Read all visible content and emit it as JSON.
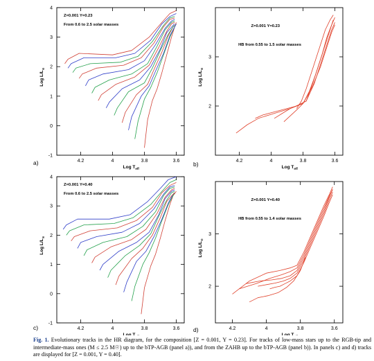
{
  "figure": {
    "caption_label": "Fig. 1.",
    "caption_text": "Evolutionary tracks in the HR diagram, for the composition [Z = 0.001, Y = 0.23]. For tracks of low-mass stars up to the RGB-tip and intermediate-mass ones (M ≤ 2.5 M☉) up to the bTP-AGB (panel a)), and from the ZAHB up to the bTP-AGB (panel b)). In panels c) and d) tracks are displayed for [Z = 0.001, Y = 0.40]."
  },
  "colors": {
    "track_a": "#2d3cc8",
    "track_b": "#e05e4a",
    "hb": "#e0402a"
  },
  "chart_data": [
    {
      "panel": "a)",
      "type": "line",
      "annotation_1": "Z=0.001 Y=0.23",
      "annotation_2": "From 0.6 to 2.5 solar masses",
      "xlabel": "Log T",
      "xlabel_sub": "eff",
      "ylabel": "Log L/L",
      "ylabel_sub": "⊙",
      "xlim": [
        4.35,
        3.55
      ],
      "ylim": [
        -1,
        4
      ],
      "xticks": [
        "4.2",
        "4",
        "3.8",
        "3.6"
      ],
      "yticks": [
        "-1",
        "0",
        "1",
        "2",
        "3",
        "4"
      ],
      "tracks": [
        {
          "x": [
            3.8,
            3.78,
            3.75,
            3.72,
            3.69,
            3.66,
            3.63,
            3.61,
            3.6
          ],
          "y": [
            -0.75,
            0.2,
            0.85,
            1.25,
            1.8,
            2.4,
            3.0,
            3.35,
            3.5
          ],
          "color": "#d03f34"
        },
        {
          "x": [
            3.86,
            3.84,
            3.8,
            3.76,
            3.72,
            3.68,
            3.64,
            3.61,
            3.6
          ],
          "y": [
            -0.45,
            0.15,
            0.9,
            1.3,
            1.8,
            2.4,
            3.0,
            3.35,
            3.45
          ],
          "color": "#22a04a"
        },
        {
          "x": [
            3.9,
            3.88,
            3.82,
            3.77,
            3.73,
            3.68,
            3.64,
            3.61,
            3.6
          ],
          "y": [
            -0.15,
            0.3,
            1.0,
            1.35,
            1.85,
            2.45,
            3.05,
            3.35,
            3.45
          ],
          "color": "#2d3cc8"
        },
        {
          "x": [
            3.94,
            3.92,
            3.85,
            3.78,
            3.74,
            3.69,
            3.65,
            3.62,
            3.61
          ],
          "y": [
            0.1,
            0.45,
            1.05,
            1.4,
            1.9,
            2.5,
            3.05,
            3.35,
            3.4
          ],
          "color": "#d03f34"
        },
        {
          "x": [
            3.99,
            3.97,
            3.9,
            3.8,
            3.75,
            3.7,
            3.65,
            3.62,
            3.61
          ],
          "y": [
            0.35,
            0.6,
            1.15,
            1.45,
            1.95,
            2.55,
            3.1,
            3.35,
            3.4
          ],
          "color": "#22a04a"
        },
        {
          "x": [
            4.04,
            4.02,
            3.94,
            3.83,
            3.76,
            3.7,
            3.66,
            3.62,
            3.61
          ],
          "y": [
            0.6,
            0.8,
            1.25,
            1.55,
            2.0,
            2.6,
            3.15,
            3.4,
            3.45
          ],
          "color": "#2d3cc8"
        },
        {
          "x": [
            4.09,
            4.07,
            3.98,
            3.86,
            3.77,
            3.71,
            3.66,
            3.63,
            3.61
          ],
          "y": [
            0.85,
            1.05,
            1.4,
            1.65,
            2.05,
            2.65,
            3.2,
            3.45,
            3.5
          ],
          "color": "#d03f34"
        },
        {
          "x": [
            4.13,
            4.11,
            4.02,
            3.88,
            3.78,
            3.72,
            3.67,
            3.63,
            3.61
          ],
          "y": [
            1.1,
            1.3,
            1.55,
            1.75,
            2.1,
            2.7,
            3.25,
            3.5,
            3.55
          ],
          "color": "#22a04a"
        },
        {
          "x": [
            4.17,
            4.15,
            4.06,
            3.9,
            3.8,
            3.73,
            3.67,
            3.63,
            3.61
          ],
          "y": [
            1.35,
            1.55,
            1.75,
            1.9,
            2.2,
            2.75,
            3.3,
            3.55,
            3.6
          ],
          "color": "#2d3cc8"
        },
        {
          "x": [
            4.21,
            4.19,
            4.1,
            3.93,
            3.82,
            3.74,
            3.68,
            3.64,
            3.61
          ],
          "y": [
            1.6,
            1.75,
            1.95,
            2.05,
            2.3,
            2.8,
            3.35,
            3.6,
            3.65
          ],
          "color": "#d03f34"
        },
        {
          "x": [
            4.25,
            4.23,
            4.14,
            3.95,
            3.84,
            3.75,
            3.68,
            3.64,
            3.61
          ],
          "y": [
            1.8,
            1.95,
            2.1,
            2.15,
            2.35,
            2.85,
            3.4,
            3.65,
            3.7
          ],
          "color": "#22a04a"
        },
        {
          "x": [
            4.28,
            4.26,
            4.18,
            3.98,
            3.86,
            3.76,
            3.69,
            3.64,
            3.6
          ],
          "y": [
            1.95,
            2.1,
            2.3,
            2.3,
            2.45,
            2.9,
            3.45,
            3.7,
            3.8
          ],
          "color": "#2d3cc8"
        },
        {
          "x": [
            4.3,
            4.28,
            4.21,
            4.0,
            3.88,
            3.77,
            3.69,
            3.64,
            3.6
          ],
          "y": [
            2.1,
            2.25,
            2.45,
            2.4,
            2.55,
            3.0,
            3.5,
            3.8,
            3.9
          ],
          "color": "#d03f34"
        }
      ]
    },
    {
      "panel": "b)",
      "type": "line",
      "annotation_1": "Z=0.001 Y=0.23",
      "annotation_2": "HB from 0.55 to 1.5 solar masses",
      "xlabel": "Log T",
      "xlabel_sub": "eff",
      "ylabel": "Log L/L",
      "ylabel_sub": "⊙",
      "xlim": [
        4.35,
        3.55
      ],
      "ylim": [
        1,
        4
      ],
      "xticks": [
        "4.2",
        "4",
        "3.8",
        "3.6"
      ],
      "yticks": [
        "2",
        "3"
      ],
      "tracks": [
        {
          "x": [
            4.22,
            4.15,
            4.08,
            3.98,
            3.88,
            3.8,
            3.74,
            3.69,
            3.65,
            3.62,
            3.6
          ],
          "y": [
            1.45,
            1.62,
            1.75,
            1.85,
            1.95,
            2.05,
            2.4,
            2.8,
            3.2,
            3.5,
            3.65
          ],
          "color": "#e0402a"
        },
        {
          "x": [
            4.1,
            4.05,
            3.98,
            3.9,
            3.84,
            3.78,
            3.73,
            3.69,
            3.65,
            3.62,
            3.6
          ],
          "y": [
            1.75,
            1.82,
            1.88,
            1.95,
            2.0,
            2.1,
            2.45,
            2.85,
            3.25,
            3.55,
            3.7
          ],
          "color": "#e0402a"
        },
        {
          "x": [
            3.98,
            3.93,
            3.88,
            3.83,
            3.78,
            3.74,
            3.7,
            3.66,
            3.63,
            3.61
          ],
          "y": [
            1.75,
            1.85,
            1.95,
            2.02,
            2.1,
            2.45,
            2.85,
            3.25,
            3.55,
            3.75
          ],
          "color": "#e0402a"
        },
        {
          "x": [
            3.92,
            3.88,
            3.84,
            3.8,
            3.76,
            3.72,
            3.68,
            3.65,
            3.62,
            3.6
          ],
          "y": [
            1.68,
            1.8,
            1.92,
            2.05,
            2.3,
            2.65,
            3.05,
            3.4,
            3.65,
            3.8
          ],
          "color": "#e0402a"
        },
        {
          "x": [
            3.84,
            3.81,
            3.78,
            3.75,
            3.72,
            3.69,
            3.66,
            3.63,
            3.61
          ],
          "y": [
            1.95,
            2.1,
            2.35,
            2.65,
            2.95,
            3.25,
            3.55,
            3.75,
            3.85
          ],
          "color": "#e0402a"
        }
      ]
    },
    {
      "panel": "c)",
      "type": "line",
      "annotation_1": "Z=0.001 Y=0.40",
      "annotation_2": "From 0.6 to 2.5 solar masses",
      "xlabel": "Log T",
      "xlabel_sub": "eff",
      "ylabel": "Log L/L",
      "ylabel_sub": "⊙",
      "xlim": [
        4.35,
        3.55
      ],
      "ylim": [
        -1,
        4
      ],
      "xticks": [
        "4.2",
        "4",
        "3.8",
        "3.6"
      ],
      "yticks": [
        "-1",
        "0",
        "1",
        "2",
        "3",
        "4"
      ],
      "tracks": [
        {
          "x": [
            3.82,
            3.8,
            3.76,
            3.73,
            3.7,
            3.67,
            3.64,
            3.62,
            3.6
          ],
          "y": [
            -0.7,
            0.2,
            0.95,
            1.35,
            1.9,
            2.5,
            3.05,
            3.35,
            3.5
          ],
          "color": "#d03f34"
        },
        {
          "x": [
            3.88,
            3.86,
            3.81,
            3.77,
            3.73,
            3.69,
            3.65,
            3.62,
            3.61
          ],
          "y": [
            -0.25,
            0.25,
            1.0,
            1.4,
            1.9,
            2.5,
            3.05,
            3.35,
            3.45
          ],
          "color": "#22a04a"
        },
        {
          "x": [
            3.93,
            3.91,
            3.85,
            3.79,
            3.74,
            3.69,
            3.65,
            3.62,
            3.61
          ],
          "y": [
            0.05,
            0.4,
            1.1,
            1.45,
            1.95,
            2.55,
            3.1,
            3.4,
            3.45
          ],
          "color": "#2d3cc8"
        },
        {
          "x": [
            3.98,
            3.96,
            3.88,
            3.81,
            3.75,
            3.7,
            3.66,
            3.62,
            3.61
          ],
          "y": [
            0.3,
            0.6,
            1.2,
            1.55,
            2.0,
            2.6,
            3.15,
            3.4,
            3.45
          ],
          "color": "#d03f34"
        },
        {
          "x": [
            4.03,
            4.01,
            3.92,
            3.83,
            3.76,
            3.71,
            3.66,
            3.63,
            3.61
          ],
          "y": [
            0.55,
            0.8,
            1.3,
            1.65,
            2.05,
            2.65,
            3.2,
            3.45,
            3.5
          ],
          "color": "#22a04a"
        },
        {
          "x": [
            4.08,
            4.06,
            3.96,
            3.85,
            3.77,
            3.71,
            3.67,
            3.63,
            3.61
          ],
          "y": [
            0.8,
            1.0,
            1.45,
            1.75,
            2.1,
            2.7,
            3.25,
            3.5,
            3.55
          ],
          "color": "#2d3cc8"
        },
        {
          "x": [
            4.13,
            4.11,
            4.01,
            3.88,
            3.79,
            3.72,
            3.67,
            3.63,
            3.61
          ],
          "y": [
            1.05,
            1.25,
            1.6,
            1.85,
            2.2,
            2.75,
            3.3,
            3.55,
            3.6
          ],
          "color": "#d03f34"
        },
        {
          "x": [
            4.18,
            4.16,
            4.06,
            3.91,
            3.81,
            3.73,
            3.68,
            3.64,
            3.61
          ],
          "y": [
            1.3,
            1.5,
            1.75,
            1.95,
            2.3,
            2.8,
            3.35,
            3.6,
            3.65
          ],
          "color": "#22a04a"
        },
        {
          "x": [
            4.22,
            4.2,
            4.1,
            3.94,
            3.83,
            3.74,
            3.68,
            3.64,
            3.61
          ],
          "y": [
            1.55,
            1.75,
            1.95,
            2.1,
            2.4,
            2.9,
            3.4,
            3.65,
            3.7
          ],
          "color": "#2d3cc8"
        },
        {
          "x": [
            4.26,
            4.24,
            4.14,
            3.97,
            3.85,
            3.75,
            3.69,
            3.64,
            3.6
          ],
          "y": [
            1.8,
            1.95,
            2.15,
            2.25,
            2.5,
            2.95,
            3.45,
            3.7,
            3.8
          ],
          "color": "#d03f34"
        },
        {
          "x": [
            4.29,
            4.27,
            4.18,
            3.99,
            3.87,
            3.76,
            3.69,
            3.64,
            3.6
          ],
          "y": [
            2.0,
            2.15,
            2.35,
            2.4,
            2.6,
            3.05,
            3.5,
            3.8,
            3.9
          ],
          "color": "#22a04a"
        },
        {
          "x": [
            4.31,
            4.29,
            4.22,
            4.02,
            3.89,
            3.78,
            3.7,
            3.65,
            3.6
          ],
          "y": [
            2.2,
            2.35,
            2.55,
            2.55,
            2.7,
            3.15,
            3.6,
            3.9,
            4.0
          ],
          "color": "#2d3cc8"
        }
      ]
    },
    {
      "panel": "d)",
      "type": "line",
      "annotation_1": "Z=0.001 Y=0.40",
      "annotation_2": "HB from 0.55 to 1.4 solar masses",
      "xlabel": "Log T",
      "xlabel_sub": "eff",
      "ylabel": "Log L/L",
      "ylabel_sub": "⊙",
      "xlim": [
        4.3,
        3.55
      ],
      "ylim": [
        1.3,
        4
      ],
      "xticks": [
        "4.2",
        "4",
        "3.8",
        "3.6"
      ],
      "yticks": [
        "2",
        "3"
      ],
      "tracks": [
        {
          "x": [
            4.2,
            4.1,
            4.0,
            3.92,
            3.86,
            3.82,
            3.78,
            3.74,
            3.7,
            3.66,
            3.63,
            3.61
          ],
          "y": [
            1.85,
            2.1,
            2.25,
            2.3,
            2.35,
            2.4,
            2.65,
            2.95,
            3.25,
            3.55,
            3.75,
            3.9
          ],
          "color": "#e0402a"
        },
        {
          "x": [
            4.16,
            4.06,
            3.98,
            3.91,
            3.86,
            3.82,
            3.78,
            3.74,
            3.7,
            3.66,
            3.63,
            3.61
          ],
          "y": [
            1.95,
            2.05,
            2.15,
            2.22,
            2.28,
            2.35,
            2.6,
            2.9,
            3.2,
            3.5,
            3.72,
            3.85
          ],
          "color": "#e0402a"
        },
        {
          "x": [
            4.12,
            4.04,
            3.97,
            3.91,
            3.86,
            3.82,
            3.78,
            3.74,
            3.7,
            3.66,
            3.63,
            3.61
          ],
          "y": [
            2.05,
            2.1,
            2.12,
            2.15,
            2.2,
            2.3,
            2.55,
            2.85,
            3.15,
            3.45,
            3.7,
            3.85
          ],
          "color": "#e0402a"
        },
        {
          "x": [
            4.05,
            4.0,
            3.95,
            3.9,
            3.86,
            3.82,
            3.78,
            3.74,
            3.7,
            3.66,
            3.63,
            3.61
          ],
          "y": [
            2.0,
            2.03,
            2.06,
            2.1,
            2.15,
            2.25,
            2.5,
            2.8,
            3.1,
            3.4,
            3.65,
            3.8
          ],
          "color": "#e0402a"
        },
        {
          "x": [
            3.98,
            3.95,
            3.92,
            3.89,
            3.86,
            3.82,
            3.78,
            3.74,
            3.7,
            3.66,
            3.63,
            3.61
          ],
          "y": [
            1.95,
            1.98,
            2.0,
            2.05,
            2.1,
            2.2,
            2.45,
            2.75,
            3.05,
            3.35,
            3.6,
            3.75
          ],
          "color": "#e0402a"
        },
        {
          "x": [
            4.1,
            4.05,
            3.99,
            3.93,
            3.88,
            3.84,
            3.8,
            3.77
          ],
          "y": [
            1.7,
            1.78,
            1.82,
            1.88,
            1.98,
            2.1,
            2.3,
            2.55
          ],
          "color": "#e0402a"
        }
      ]
    }
  ]
}
